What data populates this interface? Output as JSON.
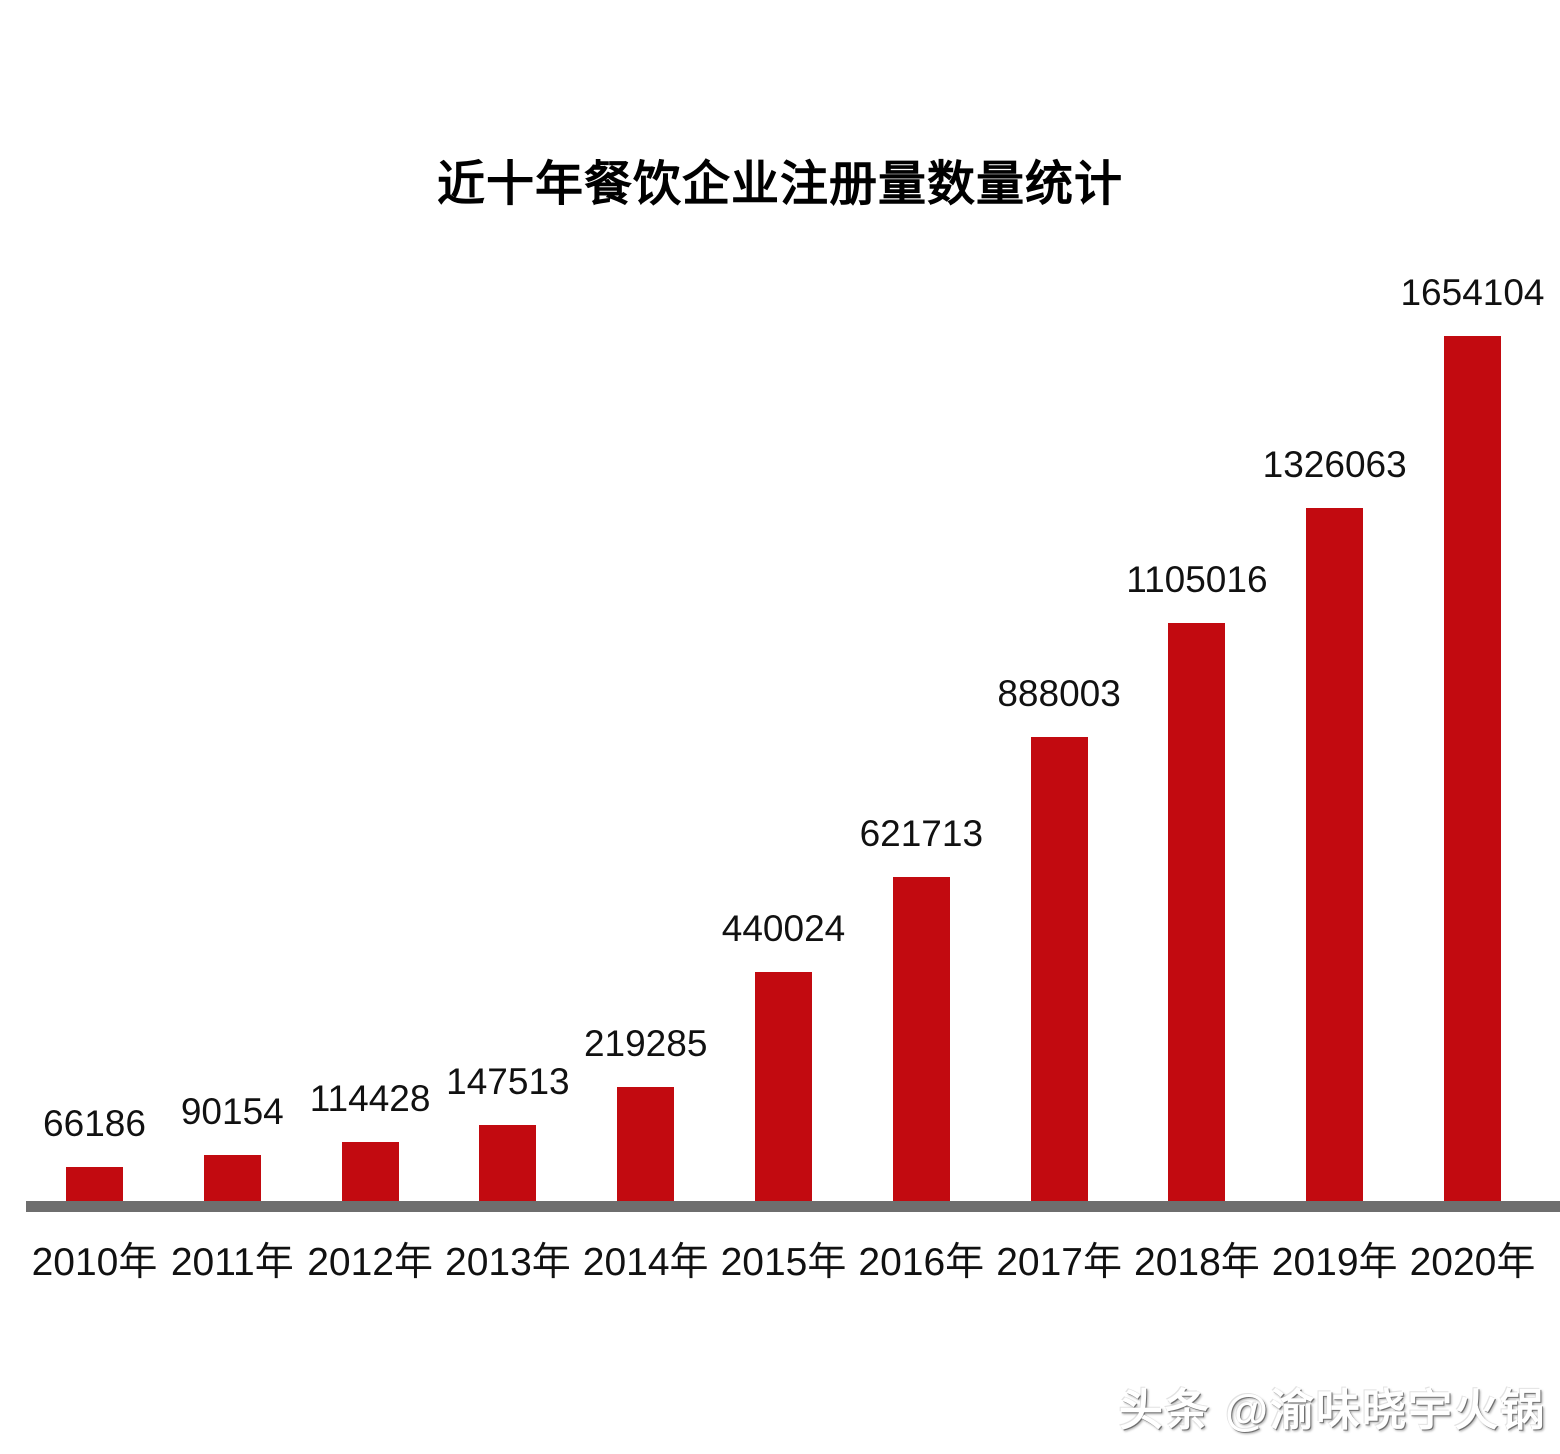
{
  "title": "近十年餐饮企业注册量数量统计",
  "watermark": "头条 @渝味晓宇火锅",
  "colors": {
    "bar": "#c20a10",
    "axis": "#6e6e6e",
    "title_text": "#000000",
    "label_text": "#111111",
    "background": "#ffffff"
  },
  "chart_data": {
    "type": "bar",
    "title": "近十年餐饮企业注册量数量统计",
    "categories": [
      "2010年",
      "2011年",
      "2012年",
      "2013年",
      "2014年",
      "2015年",
      "2016年",
      "2017年",
      "2018年",
      "2019年",
      "2020年"
    ],
    "values": [
      66186,
      90154,
      114428,
      147513,
      219285,
      440024,
      621713,
      888003,
      1105016,
      1326063,
      1654104
    ],
    "data_labels": [
      66186,
      90154,
      114428,
      147513,
      219285,
      440024,
      621713,
      888003,
      1105016,
      1326063,
      1654104
    ],
    "xlabel": "",
    "ylabel": "",
    "ylim": [
      0,
      1654104
    ],
    "grid": false,
    "legend": false,
    "bar_color": "#c20a10",
    "axis_line_color": "#6e6e6e",
    "data_labels_position": "outside-end"
  }
}
